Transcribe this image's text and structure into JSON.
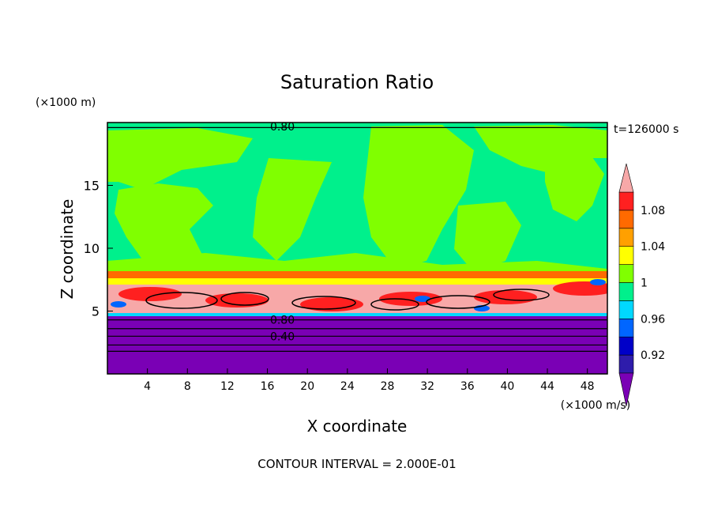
{
  "chart_data": {
    "type": "heatmap",
    "title": "Saturation Ratio",
    "xlabel": "X coordinate",
    "ylabel": "Z coordinate",
    "x_unit": "(×1000 m/s)",
    "y_unit": "(×1000 m)",
    "time_label": "t=126000 s",
    "footer": "CONTOUR INTERVAL = 2.000E-01",
    "xlim": [
      0,
      50
    ],
    "ylim": [
      0,
      20
    ],
    "x_ticks": [
      4,
      8,
      12,
      16,
      20,
      24,
      28,
      32,
      36,
      40,
      44,
      48
    ],
    "y_ticks": [
      5,
      10,
      15
    ],
    "contour_labels": [
      {
        "text": "0.80",
        "x": 17.5,
        "z": 19.7
      },
      {
        "text": "0.80",
        "x": 17.5,
        "z": 4.3
      },
      {
        "text": "0.40",
        "x": 17.5,
        "z": 3.0
      }
    ],
    "colorbar": {
      "levels": [
        "below",
        0.92,
        0.94,
        0.96,
        0.98,
        1.0,
        1.02,
        1.04,
        1.06,
        1.08,
        1.1,
        "above"
      ],
      "colors": [
        "#7a00b5",
        "#2e1cab",
        "#0000c8",
        "#0066ff",
        "#00d8ff",
        "#00f08c",
        "#80ff00",
        "#ffff00",
        "#ffa000",
        "#ff6a00",
        "#ff2020",
        "#f7a8a8"
      ],
      "tick_labels": [
        "0.92",
        "0.96",
        "1",
        "1.04",
        "1.08"
      ]
    },
    "layers": [
      {
        "z_from": 0,
        "z_to": 4.6,
        "value": "below 0.92"
      },
      {
        "z_from": 4.6,
        "z_to": 7.5,
        "value": "above 1.10 (supersaturated band)"
      },
      {
        "z_from": 7.5,
        "z_to": 19.6,
        "value": "0.98 – 1.02"
      },
      {
        "z_from": 19.6,
        "z_to": 20,
        "value": "0.80"
      }
    ]
  }
}
